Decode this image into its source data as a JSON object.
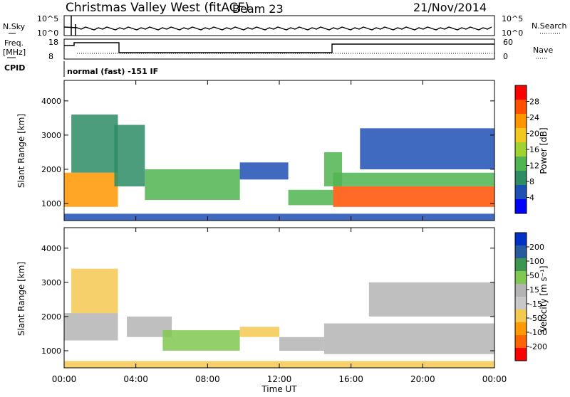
{
  "header": {
    "title": "Christmas Valley West (fitACF)",
    "beam": "Beam 23",
    "date": "21/Nov/2014"
  },
  "top_panels": {
    "nsky_label": "N.Sky",
    "nsearch_label": "N.Search",
    "nsky_ticks": [
      "10^5",
      "10^0"
    ],
    "nsearch_ticks": [
      "10^5",
      "10^0"
    ],
    "freq_label": "Freq.",
    "freq_unit": "[MHz]",
    "freq_ticks": [
      "18",
      "8"
    ],
    "nave_label": "Nave",
    "nave_ticks": [
      "60",
      "0"
    ],
    "cpid_label": "CPID",
    "cpid_text": "normal (fast) -151 IF"
  },
  "x_axis": {
    "label": "Time UT",
    "ticks": [
      "00:00",
      "04:00",
      "08:00",
      "12:00",
      "16:00",
      "20:00",
      "00:00"
    ]
  },
  "colors": {
    "power": [
      "#0000ff",
      "#1e50b4",
      "#2d8c64",
      "#50b450",
      "#a0d232",
      "#f0c81e",
      "#ff9600",
      "#ff5000",
      "#ff0000"
    ],
    "velocity": [
      "#ff0000",
      "#ff6400",
      "#ff9b00",
      "#f5c850",
      "#c8c8c8",
      "#b4b4b4",
      "#80c850",
      "#3c9650",
      "#285aa0",
      "#0032c8"
    ]
  },
  "chart_data": [
    {
      "type": "heatmap",
      "name": "power",
      "xlabel": "Time UT",
      "ylabel": "Slant Range [km]",
      "xlim": [
        0,
        24
      ],
      "ylim": [
        500,
        4600
      ],
      "yticks": [
        "1000",
        "2000",
        "3000",
        "4000"
      ],
      "colorbar_label": "Power [dB]",
      "colorbar_ticks": [
        "4",
        "8",
        "12",
        "16",
        "20",
        "24",
        "28"
      ],
      "colorbar_range": [
        0,
        32
      ],
      "bands": [
        {
          "t0": 0.0,
          "t1": 3.0,
          "r0": 900,
          "r1": 1900,
          "value": 24
        },
        {
          "t0": 0.4,
          "t1": 3.0,
          "r0": 1900,
          "r1": 3600,
          "value": 10
        },
        {
          "t0": 2.8,
          "t1": 4.5,
          "r0": 1500,
          "r1": 3300,
          "value": 8
        },
        {
          "t0": 4.5,
          "t1": 9.8,
          "r0": 1100,
          "r1": 2000,
          "value": 14
        },
        {
          "t0": 9.8,
          "t1": 12.5,
          "r0": 1700,
          "r1": 2200,
          "value": 6
        },
        {
          "t0": 12.5,
          "t1": 15.0,
          "r0": 950,
          "r1": 1400,
          "value": 12
        },
        {
          "t0": 14.5,
          "t1": 15.5,
          "r0": 1500,
          "r1": 2500,
          "value": 14
        },
        {
          "t0": 15.0,
          "t1": 24.0,
          "r0": 900,
          "r1": 1500,
          "value": 26
        },
        {
          "t0": 15.0,
          "t1": 24.0,
          "r0": 1500,
          "r1": 1900,
          "value": 14
        },
        {
          "t0": 16.5,
          "t1": 24.0,
          "r0": 2000,
          "r1": 3200,
          "value": 6
        },
        {
          "t0": 0.0,
          "t1": 24.0,
          "r0": 500,
          "r1": 700,
          "value": 6
        }
      ]
    },
    {
      "type": "heatmap",
      "name": "velocity",
      "xlabel": "Time UT",
      "ylabel": "Slant Range [km]",
      "xlim": [
        0,
        24
      ],
      "ylim": [
        500,
        4600
      ],
      "yticks": [
        "1000",
        "2000",
        "3000",
        "4000"
      ],
      "colorbar_label": "Velocity [m s⁻¹]",
      "colorbar_ticks": [
        "200",
        "100",
        "50",
        "15",
        "-15",
        "-50",
        "-100",
        "-200"
      ],
      "colorbar_range": [
        -250,
        250
      ],
      "bands": [
        {
          "t0": 0.0,
          "t1": 3.0,
          "r0": 1300,
          "r1": 2100,
          "value": 0
        },
        {
          "t0": 0.4,
          "t1": 3.0,
          "r0": 2100,
          "r1": 3400,
          "value": -60
        },
        {
          "t0": 3.5,
          "t1": 6.0,
          "r0": 1400,
          "r1": 2000,
          "value": 40
        },
        {
          "t0": 5.5,
          "t1": 9.8,
          "r0": 1000,
          "r1": 1600,
          "value": 70
        },
        {
          "t0": 9.8,
          "t1": 12.0,
          "r0": 1400,
          "r1": 1700,
          "value": -70
        },
        {
          "t0": 12.0,
          "t1": 14.5,
          "r0": 1000,
          "r1": 1400,
          "value": 0
        },
        {
          "t0": 14.5,
          "t1": 24.0,
          "r0": 900,
          "r1": 1800,
          "value": 0
        },
        {
          "t0": 17.0,
          "t1": 24.0,
          "r0": 2000,
          "r1": 3000,
          "value": 0
        },
        {
          "t0": 0.0,
          "t1": 24.0,
          "r0": 500,
          "r1": 700,
          "value": -90
        }
      ]
    }
  ]
}
